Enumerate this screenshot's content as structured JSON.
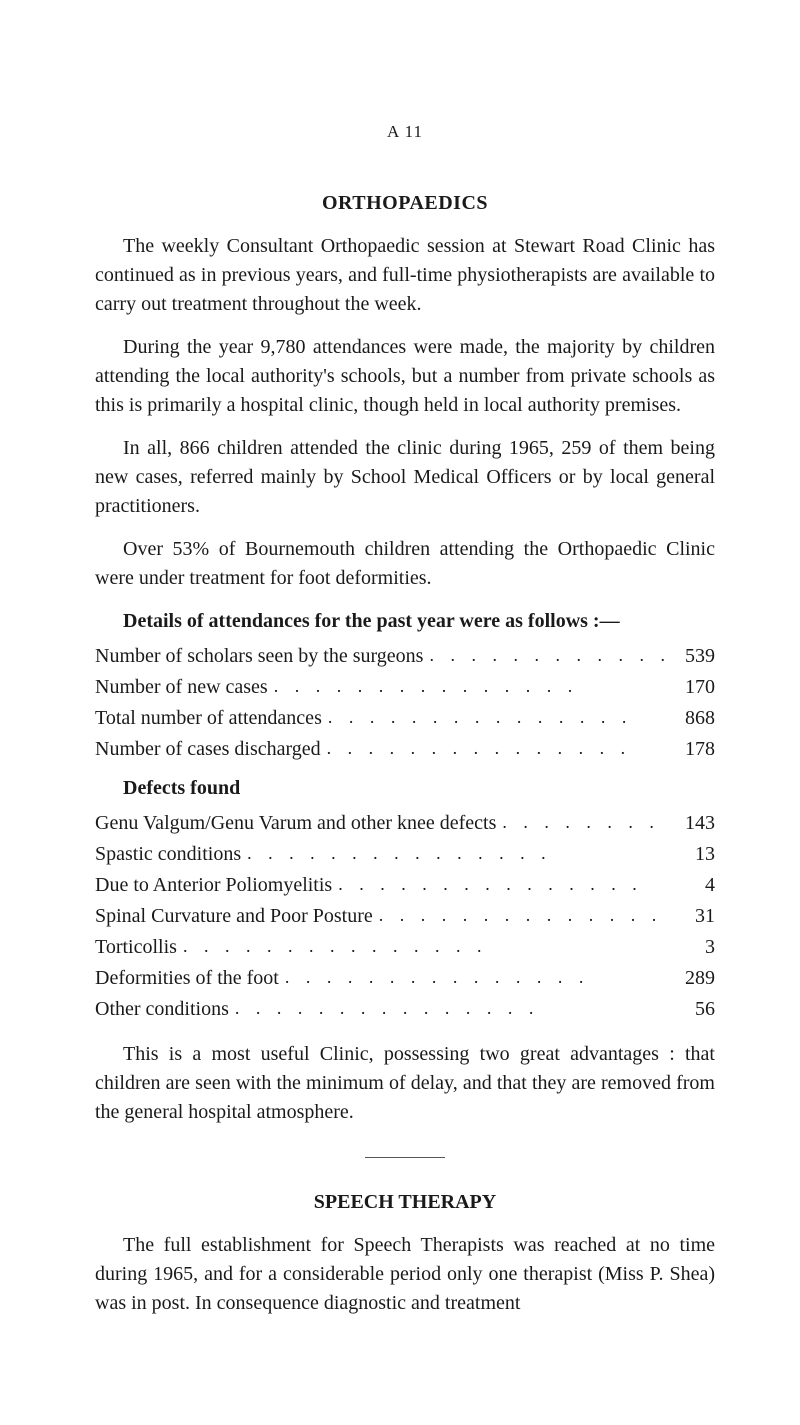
{
  "page_marker": "A 11",
  "ortho": {
    "heading": "ORTHOPAEDICS",
    "p1": "The weekly Consultant Orthopaedic session at Stewart Road Clinic has continued as in previous years, and full-time physio­therapists are available to carry out treatment throughout the week.",
    "p2": "During the year 9,780 attendances were made, the majority by children attending the local authority's schools, but a number from private schools as this is primarily a hospital clinic, though held in local authority premises.",
    "p3": "In all, 866 children attended the clinic during 1965, 259 of them being new cases, referred mainly by School Medical Officers or by local general practitioners.",
    "p4": "Over 53% of Bournemouth children attending the Orthopaedic Clinic were under treatment for foot deformities.",
    "details_heading": "Details of attendances for the past year were as follows :—",
    "stats": [
      {
        "label": "Number of scholars seen by the surgeons",
        "value": "539"
      },
      {
        "label": "Number of new cases",
        "value": "170"
      },
      {
        "label": "Total number of attendances",
        "value": "868"
      },
      {
        "label": "Number of cases discharged",
        "value": "178"
      }
    ],
    "defects_heading": "Defects found",
    "defects": [
      {
        "label": "Genu Valgum/Genu Varum and other knee defects",
        "value": "143"
      },
      {
        "label": "Spastic conditions",
        "value": "13"
      },
      {
        "label": "Due to Anterior Poliomyelitis",
        "value": "4"
      },
      {
        "label": "Spinal Curvature and Poor Posture",
        "value": "31"
      },
      {
        "label": "Torticollis",
        "value": "3"
      },
      {
        "label": "Deformities of the foot",
        "value": "289"
      },
      {
        "label": "Other conditions",
        "value": "56"
      }
    ],
    "closing": "This is a most useful Clinic, possessing two great advantages : that children are seen with the minimum of delay, and that they are removed from the general hospital atmosphere."
  },
  "speech": {
    "heading": "SPEECH THERAPY",
    "p1": "The full establishment for Speech Therapists was reached at no time during 1965, and for a considerable period only one therapist (Miss P. Shea) was in post. In consequence diagnostic and treatment"
  },
  "dots": ". . . . . . . . . . . . . . ."
}
